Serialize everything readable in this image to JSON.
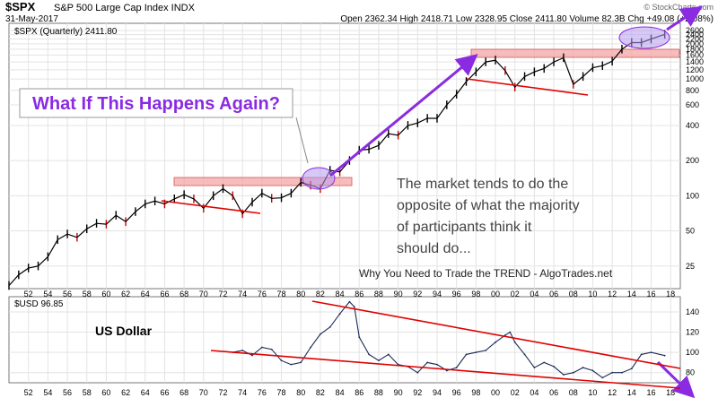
{
  "header": {
    "symbol": "$SPX",
    "index_name": "S&P 500 Large Cap Index INDX",
    "date": "31-May-2017",
    "stats": "Open 2362.34  High 2418.71  Low 2328.95  Close 2411.80  Volume 82.3B  Chg +49.08 (+2.08%)",
    "watermark": "© StockCharts.com"
  },
  "colors": {
    "price": "#000000",
    "down_bar": "#cc0000",
    "trend_line": "#e00000",
    "resistance_band": "#f4a6a6",
    "annotation_purple": "#8a2be2",
    "highlight_ellipse": "#b79cf0",
    "usd_line": "#1a2a55",
    "grid": "#dcdcdc"
  },
  "chart_data": [
    {
      "type": "line",
      "name": "spx-panel",
      "legend": "$SPX (Quarterly) 2411.80",
      "y_scale": "log",
      "ylim": [
        16,
        3000
      ],
      "xlim": [
        1950,
        2019
      ],
      "y_ticks": [
        25,
        50,
        100,
        200,
        400,
        600,
        800,
        1000,
        1200,
        1400,
        1600,
        1800,
        2000,
        2200,
        2400,
        2600
      ],
      "x_ticks": [
        "52",
        "54",
        "56",
        "58",
        "60",
        "62",
        "64",
        "66",
        "68",
        "70",
        "72",
        "74",
        "76",
        "78",
        "80",
        "82",
        "84",
        "86",
        "88",
        "90",
        "92",
        "94",
        "96",
        "98",
        "00",
        "02",
        "04",
        "06",
        "08",
        "10",
        "12",
        "14",
        "16",
        "18"
      ],
      "series": [
        {
          "x": [
            1950,
            1951,
            1952,
            1953,
            1954,
            1955,
            1956,
            1957,
            1958,
            1959,
            1960,
            1961,
            1962,
            1963,
            1964,
            1965,
            1966,
            1967,
            1968,
            1969,
            1970,
            1971,
            1972,
            1973,
            1974,
            1975,
            1976,
            1977,
            1978,
            1979,
            1980,
            1981,
            1982,
            1983,
            1984,
            1985,
            1986,
            1987,
            1988,
            1989,
            1990,
            1991,
            1992,
            1993,
            1994,
            1995,
            1996,
            1997,
            1998,
            1999,
            2000,
            2001,
            2002,
            2003,
            2004,
            2005,
            2006,
            2007,
            2008,
            2009,
            2010,
            2011,
            2012,
            2013,
            2014,
            2015,
            2016,
            2017.4
          ],
          "values": [
            17,
            21,
            24,
            25,
            30,
            42,
            47,
            44,
            52,
            58,
            57,
            68,
            60,
            73,
            85,
            90,
            85,
            94,
            102,
            94,
            78,
            100,
            115,
            100,
            70,
            88,
            105,
            95,
            96,
            105,
            130,
            123,
            115,
            165,
            160,
            200,
            245,
            250,
            270,
            340,
            330,
            400,
            420,
            460,
            460,
            600,
            740,
            950,
            1150,
            1400,
            1450,
            1180,
            850,
            1050,
            1150,
            1230,
            1400,
            1520,
            900,
            1050,
            1250,
            1300,
            1420,
            1800,
            2050,
            2050,
            2200,
            2411.8
          ]
        }
      ],
      "annotations": {
        "callout": "What If This Happens Again?",
        "note": "The market tends to do the opposite of what the majority of participants think it should do...",
        "footer": "Why You Need to Trade the TREND - AlgoTrades.net"
      }
    },
    {
      "type": "line",
      "name": "usd-panel",
      "legend": "$USD 96.85",
      "ylim": [
        70,
        155
      ],
      "xlim": [
        1950,
        2019
      ],
      "y_ticks": [
        80,
        100,
        120,
        140
      ],
      "x_ticks": [
        "52",
        "54",
        "56",
        "58",
        "60",
        "62",
        "64",
        "66",
        "68",
        "70",
        "72",
        "74",
        "76",
        "78",
        "80",
        "82",
        "84",
        "86",
        "88",
        "90",
        "92",
        "94",
        "96",
        "98",
        "00",
        "02",
        "04",
        "06",
        "08",
        "10",
        "12",
        "14",
        "16",
        "18"
      ],
      "series": [
        {
          "x": [
            1973,
            1974,
            1975,
            1976,
            1977,
            1978,
            1979,
            1980,
            1981,
            1982,
            1983,
            1984,
            1985,
            1985.5,
            1986,
            1987,
            1988,
            1989,
            1990,
            1991,
            1992,
            1993,
            1994,
            1995,
            1996,
            1997,
            1998,
            1999,
            2000,
            2001,
            2001.5,
            2002,
            2003,
            2004,
            2005,
            2006,
            2007,
            2008,
            2009,
            2010,
            2011,
            2012,
            2013,
            2014,
            2015,
            2016,
            2017.4
          ],
          "values": [
            100,
            102,
            97,
            105,
            103,
            92,
            88,
            90,
            105,
            118,
            125,
            138,
            150,
            145,
            115,
            98,
            92,
            98,
            88,
            86,
            80,
            90,
            88,
            82,
            85,
            98,
            100,
            102,
            110,
            117,
            120,
            110,
            98,
            85,
            90,
            86,
            78,
            80,
            85,
            82,
            75,
            80,
            80,
            84,
            98,
            100,
            96.85
          ]
        }
      ],
      "annotations": {
        "label": "US Dollar"
      }
    }
  ]
}
